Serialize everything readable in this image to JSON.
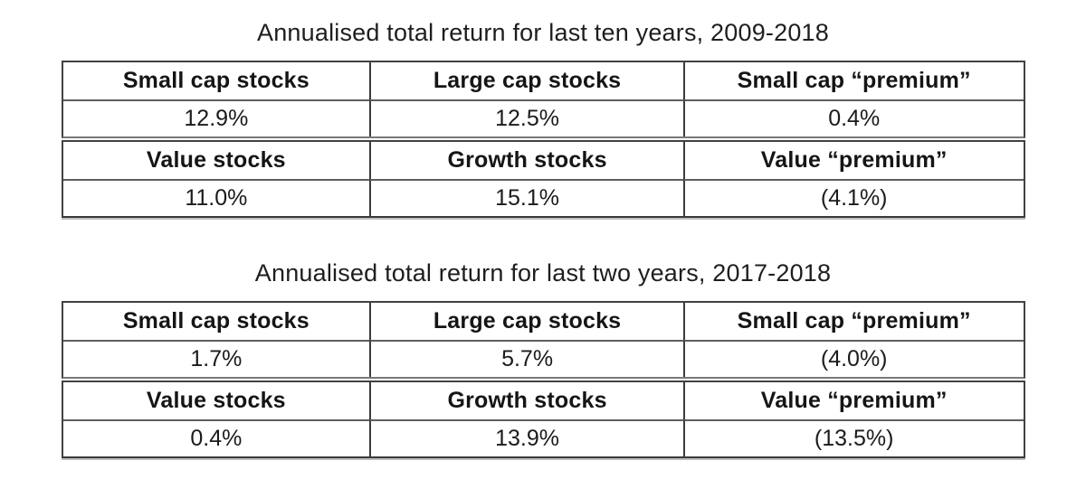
{
  "page": {
    "background": "#ffffff",
    "text_color": "#1b1b1d",
    "border_color": "#414143"
  },
  "tables": [
    {
      "title": "Annualised total return for last ten years, 2009-2018",
      "groups": [
        {
          "headers": [
            "Small cap stocks",
            "Large cap stocks",
            "Small cap “premium”"
          ],
          "values": [
            "12.9%",
            "12.5%",
            "0.4%"
          ]
        },
        {
          "headers": [
            "Value stocks",
            "Growth stocks",
            "Value “premium”"
          ],
          "values": [
            "11.0%",
            "15.1%",
            "(4.1%)"
          ]
        }
      ]
    },
    {
      "title": "Annualised total return for last two years, 2017-2018",
      "groups": [
        {
          "headers": [
            "Small cap stocks",
            "Large cap stocks",
            "Small cap “premium”"
          ],
          "values": [
            "1.7%",
            "5.7%",
            "(4.0%)"
          ]
        },
        {
          "headers": [
            "Value stocks",
            "Growth stocks",
            "Value “premium”"
          ],
          "values": [
            "0.4%",
            "13.9%",
            "(13.5%)"
          ]
        }
      ]
    }
  ]
}
